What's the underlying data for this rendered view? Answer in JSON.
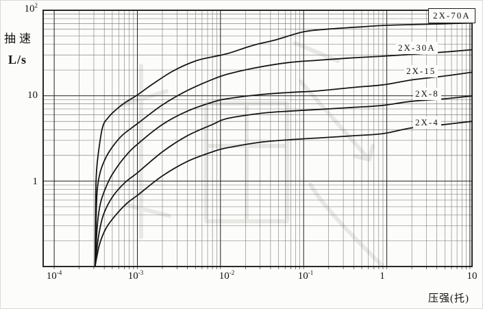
{
  "figure": {
    "y_axis": {
      "title": "抽速",
      "unit": "L/s",
      "ticks": [
        {
          "base": "10",
          "exp": "2"
        },
        {
          "base": "10",
          "exp": ""
        },
        {
          "base": "1",
          "exp": ""
        }
      ]
    },
    "x_axis": {
      "title": "压强(托)",
      "ticks": [
        {
          "base": "10",
          "exp": "-4"
        },
        {
          "base": "10",
          "exp": "-3"
        },
        {
          "base": "10",
          "exp": "-2"
        },
        {
          "base": "10",
          "exp": "-1"
        },
        {
          "base": "1",
          "exp": ""
        },
        {
          "base": "10",
          "exp": ""
        }
      ]
    },
    "curve_labels": [
      {
        "text": "2X-70A",
        "boxed": true
      },
      {
        "text": "2X-30A",
        "boxed": false
      },
      {
        "text": "2X-15",
        "boxed": false
      },
      {
        "text": "2X-8",
        "boxed": false
      },
      {
        "text": "2X-4",
        "boxed": false
      }
    ],
    "watermark_present": true
  },
  "colors": {
    "curve": "#161616",
    "grid_major": "#1f1f1f",
    "grid_minor": "#4a4a4a",
    "border": "#111111",
    "watermark": "#d7d7d4",
    "background": "#fcfcfa"
  },
  "chart_data": {
    "type": "line",
    "title": "",
    "xlabel": "压强(托)",
    "ylabel": "抽速 L/s",
    "x_scale": "log",
    "y_scale": "log",
    "xlim": [
      7.37e-05,
      10.6
    ],
    "ylim": [
      0.1,
      100
    ],
    "x_tick_values": [
      0.0001,
      0.001,
      0.01,
      0.1,
      1,
      10
    ],
    "y_tick_values": [
      100,
      10,
      1
    ],
    "grid": "log-log with minor decade lines",
    "legend_position": "labels at right edge of curves",
    "series": [
      {
        "name": "2X-70A",
        "points": [
          [
            0.00031,
            0.1
          ],
          [
            0.000315,
            0.55
          ],
          [
            0.00032,
            1.1
          ],
          [
            0.000335,
            1.9
          ],
          [
            0.00038,
            4.2
          ],
          [
            0.00045,
            5.6
          ],
          [
            0.00055,
            6.8
          ],
          [
            0.0007,
            8.2
          ],
          [
            0.001,
            10.2
          ],
          [
            0.0015,
            13.5
          ],
          [
            0.0027,
            19.5
          ],
          [
            0.005,
            25.5
          ],
          [
            0.008,
            28.5
          ],
          [
            0.012,
            31
          ],
          [
            0.025,
            39
          ],
          [
            0.046,
            45
          ],
          [
            0.1,
            56
          ],
          [
            0.21,
            60.5
          ],
          [
            0.5,
            64
          ],
          [
            0.9,
            66.5
          ],
          [
            2,
            68
          ],
          [
            5,
            69.5
          ],
          [
            10.5,
            71
          ]
        ]
      },
      {
        "name": "2X-30A",
        "points": [
          [
            0.00031,
            0.1
          ],
          [
            0.00032,
            0.4
          ],
          [
            0.00033,
            0.8
          ],
          [
            0.00036,
            1.3
          ],
          [
            0.00042,
            1.9
          ],
          [
            0.0005,
            2.5
          ],
          [
            0.00065,
            3.4
          ],
          [
            0.001,
            4.7
          ],
          [
            0.002,
            7.8
          ],
          [
            0.004,
            11.5
          ],
          [
            0.008,
            15.5
          ],
          [
            0.012,
            17.8
          ],
          [
            0.025,
            21
          ],
          [
            0.067,
            24.5
          ],
          [
            0.15,
            26
          ],
          [
            0.4,
            27.8
          ],
          [
            0.9,
            29
          ],
          [
            2,
            30.5
          ],
          [
            5,
            32.5
          ],
          [
            10.5,
            34.5
          ]
        ]
      },
      {
        "name": "2X-15",
        "points": [
          [
            0.00031,
            0.1
          ],
          [
            0.00033,
            0.3
          ],
          [
            0.00036,
            0.55
          ],
          [
            0.00042,
            0.85
          ],
          [
            0.0005,
            1.2
          ],
          [
            0.0007,
            1.9
          ],
          [
            0.001,
            2.7
          ],
          [
            0.002,
            4.6
          ],
          [
            0.004,
            6.6
          ],
          [
            0.008,
            8.4
          ],
          [
            0.012,
            9.2
          ],
          [
            0.03,
            10.3
          ],
          [
            0.067,
            10.9
          ],
          [
            0.15,
            11.4
          ],
          [
            0.4,
            12.5
          ],
          [
            0.9,
            13.4
          ],
          [
            2,
            15.3
          ],
          [
            5,
            17
          ],
          [
            10.5,
            18.8
          ]
        ]
      },
      {
        "name": "2X-8",
        "points": [
          [
            0.00031,
            0.1
          ],
          [
            0.00034,
            0.22
          ],
          [
            0.00039,
            0.4
          ],
          [
            0.0005,
            0.65
          ],
          [
            0.0007,
            0.95
          ],
          [
            0.001,
            1.25
          ],
          [
            0.002,
            2.2
          ],
          [
            0.004,
            3.4
          ],
          [
            0.008,
            4.6
          ],
          [
            0.012,
            5.4
          ],
          [
            0.03,
            6.2
          ],
          [
            0.067,
            6.6
          ],
          [
            0.15,
            6.9
          ],
          [
            0.4,
            7.3
          ],
          [
            0.9,
            7.7
          ],
          [
            2,
            8.6
          ],
          [
            5,
            9.2
          ],
          [
            10.5,
            9.9
          ]
        ]
      },
      {
        "name": "2X-4",
        "points": [
          [
            0.00031,
            0.1
          ],
          [
            0.00035,
            0.18
          ],
          [
            0.00042,
            0.28
          ],
          [
            0.00055,
            0.4
          ],
          [
            0.00075,
            0.55
          ],
          [
            0.001,
            0.68
          ],
          [
            0.002,
            1.15
          ],
          [
            0.004,
            1.7
          ],
          [
            0.008,
            2.2
          ],
          [
            0.012,
            2.45
          ],
          [
            0.03,
            2.85
          ],
          [
            0.067,
            3.05
          ],
          [
            0.15,
            3.2
          ],
          [
            0.4,
            3.4
          ],
          [
            0.9,
            3.6
          ],
          [
            2,
            4.2
          ],
          [
            5,
            4.6
          ],
          [
            10.5,
            5.0
          ]
        ]
      }
    ]
  }
}
